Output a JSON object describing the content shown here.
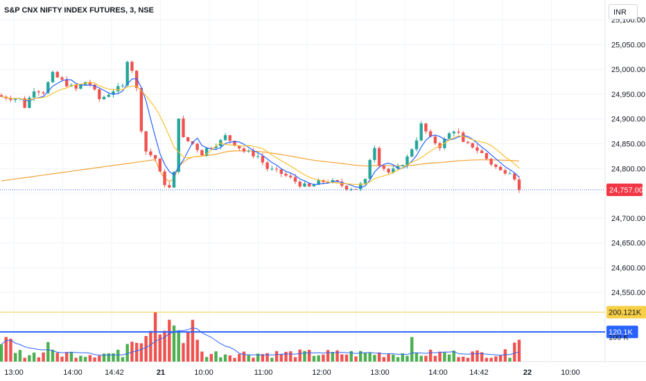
{
  "header": {
    "title": "S&P CNX NIFTY INDEX FUTURES, 3, NSE",
    "currency": "INR"
  },
  "colors": {
    "up": "#26a69a",
    "up_volume": "#4caf50",
    "down": "#ef5350",
    "ma_fast": "#2962ff",
    "ma_slow": "#fbc02d",
    "vwap": "#f5a233",
    "volume_ma": "#2962ff",
    "last_price": "#f23645"
  },
  "chart_data": {
    "type": "candlestick",
    "price_axis": {
      "ylim": [
        24525,
        25140
      ],
      "ticks": [
        25100,
        25050,
        25000,
        24950,
        24900,
        24850,
        24800,
        24750,
        24700,
        24650,
        24600,
        24550
      ],
      "tick_labels": [
        "25,100.00",
        "25,050.00",
        "25,000.00",
        "24,950.00",
        "24,900.00",
        "24,850.00",
        "24,800.00",
        "",
        "24,700.00",
        "24,650.00",
        "24,600.00",
        "24,550.00"
      ]
    },
    "time_axis": {
      "labels": [
        "13:00",
        "14:00",
        "14:42",
        "21",
        "10:00",
        "11:00",
        "12:00",
        "13:00",
        "14:00",
        "14:42",
        "22",
        "10:00"
      ],
      "bold": [
        false,
        false,
        false,
        true,
        false,
        false,
        false,
        false,
        false,
        false,
        true,
        false
      ]
    },
    "last_price": {
      "value": 24757,
      "label": "24,757.00"
    },
    "price_path": [
      [
        0,
        24945
      ],
      [
        4,
        24940
      ],
      [
        5,
        24925
      ],
      [
        7,
        24960
      ],
      [
        9,
        24955
      ],
      [
        11,
        24990
      ],
      [
        14,
        24970
      ],
      [
        16,
        24960
      ],
      [
        18,
        24975
      ],
      [
        19,
        24970
      ],
      [
        21,
        24940
      ],
      [
        22,
        24945
      ],
      [
        24,
        24958
      ],
      [
        26,
        24965
      ],
      [
        27,
        25020
      ],
      [
        28,
        25000
      ],
      [
        29,
        24960
      ],
      [
        30,
        24880
      ],
      [
        31,
        24835
      ],
      [
        33,
        24820
      ],
      [
        34,
        24790
      ],
      [
        35,
        24770
      ],
      [
        36,
        24760
      ],
      [
        37,
        24790
      ],
      [
        38,
        24905
      ],
      [
        39,
        24860
      ],
      [
        41,
        24850
      ],
      [
        43,
        24830
      ],
      [
        44,
        24840
      ],
      [
        45,
        24845
      ],
      [
        47,
        24855
      ],
      [
        48,
        24865
      ],
      [
        50,
        24850
      ],
      [
        52,
        24835
      ],
      [
        55,
        24825
      ],
      [
        57,
        24800
      ],
      [
        60,
        24790
      ],
      [
        62,
        24780
      ],
      [
        64,
        24768
      ],
      [
        66,
        24762
      ],
      [
        68,
        24772
      ],
      [
        70,
        24775
      ],
      [
        72,
        24770
      ],
      [
        74,
        24762
      ],
      [
        76,
        24760
      ],
      [
        78,
        24775
      ],
      [
        79,
        24820
      ],
      [
        80,
        24845
      ],
      [
        81,
        24810
      ],
      [
        83,
        24792
      ],
      [
        85,
        24800
      ],
      [
        87,
        24822
      ],
      [
        89,
        24860
      ],
      [
        90,
        24888
      ],
      [
        92,
        24860
      ],
      [
        94,
        24845
      ],
      [
        96,
        24870
      ],
      [
        97,
        24878
      ],
      [
        98,
        24870
      ],
      [
        99,
        24850
      ],
      [
        101,
        24845
      ],
      [
        103,
        24830
      ],
      [
        105,
        24810
      ],
      [
        107,
        24795
      ],
      [
        109,
        24795
      ],
      [
        110,
        24782
      ],
      [
        111,
        24757
      ]
    ],
    "volume_axis": {
      "ylim": [
        0,
        230000
      ],
      "labels": [
        {
          "value": 200121,
          "text": "200.121K",
          "color": "#f7d046",
          "text_color": "#131722"
        },
        {
          "value": 120100,
          "text": "120.1K",
          "color": "#2962ff",
          "text_color": "#ffffff"
        },
        {
          "value": 100000,
          "text": "100 K",
          "color": "",
          "text_color": "#131722"
        }
      ]
    }
  }
}
